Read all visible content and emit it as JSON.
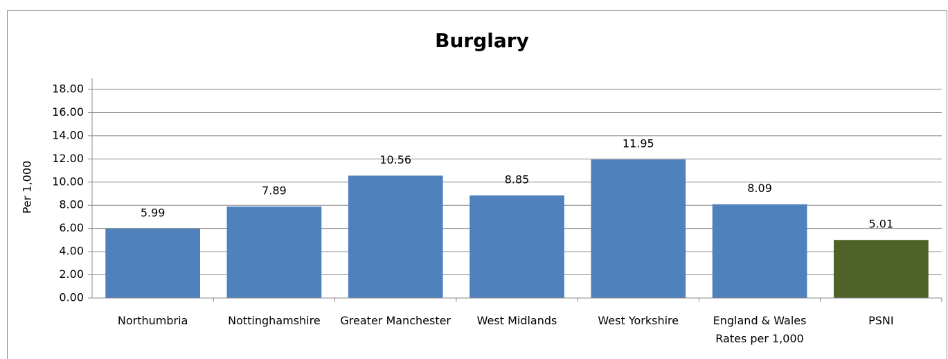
{
  "chart_data": {
    "type": "bar",
    "title": "Burglary",
    "y_label": "Per 1,000",
    "categories": [
      "Northumbria",
      "Nottinghamshire",
      "Greater Manchester",
      "West Midlands",
      "West Yorkshire",
      "England & Wales Rates per 1,000",
      "PSNI"
    ],
    "values": [
      5.99,
      7.89,
      10.56,
      8.85,
      11.95,
      8.09,
      5.01
    ],
    "colors": [
      "#4f81bd",
      "#4f81bd",
      "#4f81bd",
      "#4f81bd",
      "#4f81bd",
      "#4f81bd",
      "#4f6228"
    ],
    "ylim": [
      0,
      18
    ],
    "yticks": [
      {
        "value": 0,
        "label": "0.00"
      },
      {
        "value": 2,
        "label": "2.00"
      },
      {
        "value": 4,
        "label": "4.00"
      },
      {
        "value": 6,
        "label": "6.00"
      },
      {
        "value": 8,
        "label": "8.00"
      },
      {
        "value": 10,
        "label": "10.00"
      },
      {
        "value": 12,
        "label": "12.00"
      },
      {
        "value": 14,
        "label": "14.00"
      },
      {
        "value": 16,
        "label": "16.00"
      },
      {
        "value": 18,
        "label": "18.00"
      }
    ],
    "grid": true
  }
}
